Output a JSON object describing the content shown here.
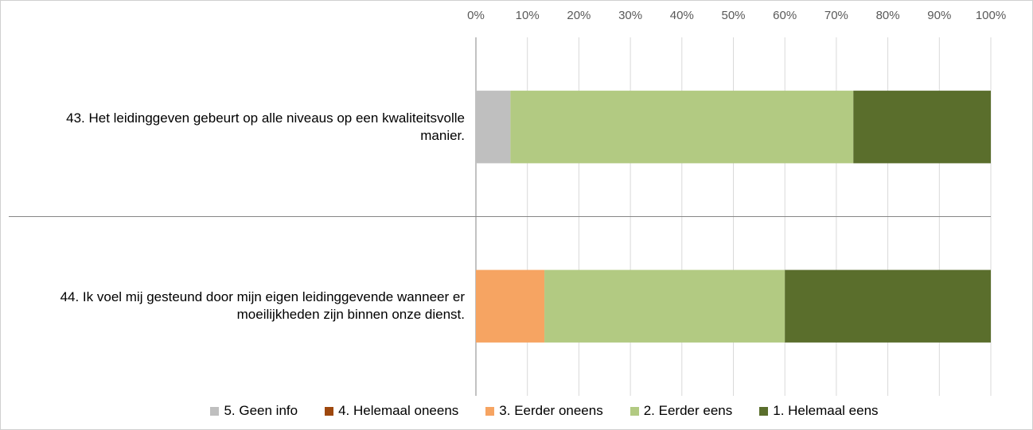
{
  "chart_data": {
    "type": "stacked_barh",
    "categories": [
      "43. Het leidinggeven gebeurt op alle niveaus op een kwaliteitsvolle manier.",
      "44. Ik voel mij gesteund door mijn eigen leidinggevende wanneer er moeilijkheden zijn binnen onze dienst."
    ],
    "series": [
      {
        "name": "5. Geen info",
        "color": "#bfbfbf",
        "values": [
          6.7,
          0
        ]
      },
      {
        "name": "4. Helemaal oneens",
        "color": "#9e480e",
        "values": [
          0,
          0
        ]
      },
      {
        "name": "3. Eerder oneens",
        "color": "#f6a462",
        "values": [
          0,
          13.3
        ]
      },
      {
        "name": "2. Eerder eens",
        "color": "#b2ca82",
        "values": [
          66.6,
          46.7
        ]
      },
      {
        "name": "1. Helemaal eens",
        "color": "#5a6e2c",
        "values": [
          26.7,
          40
        ]
      }
    ],
    "xlim": [
      0,
      100
    ],
    "xticks": [
      {
        "value": 0,
        "label": "0%"
      },
      {
        "value": 10,
        "label": "10%"
      },
      {
        "value": 20,
        "label": "20%"
      },
      {
        "value": 30,
        "label": "30%"
      },
      {
        "value": 40,
        "label": "40%"
      },
      {
        "value": 50,
        "label": "50%"
      },
      {
        "value": 60,
        "label": "60%"
      },
      {
        "value": 70,
        "label": "70%"
      },
      {
        "value": 80,
        "label": "80%"
      },
      {
        "value": 90,
        "label": "90%"
      },
      {
        "value": 100,
        "label": "100%"
      }
    ],
    "grid": true,
    "legend": "bottom"
  }
}
